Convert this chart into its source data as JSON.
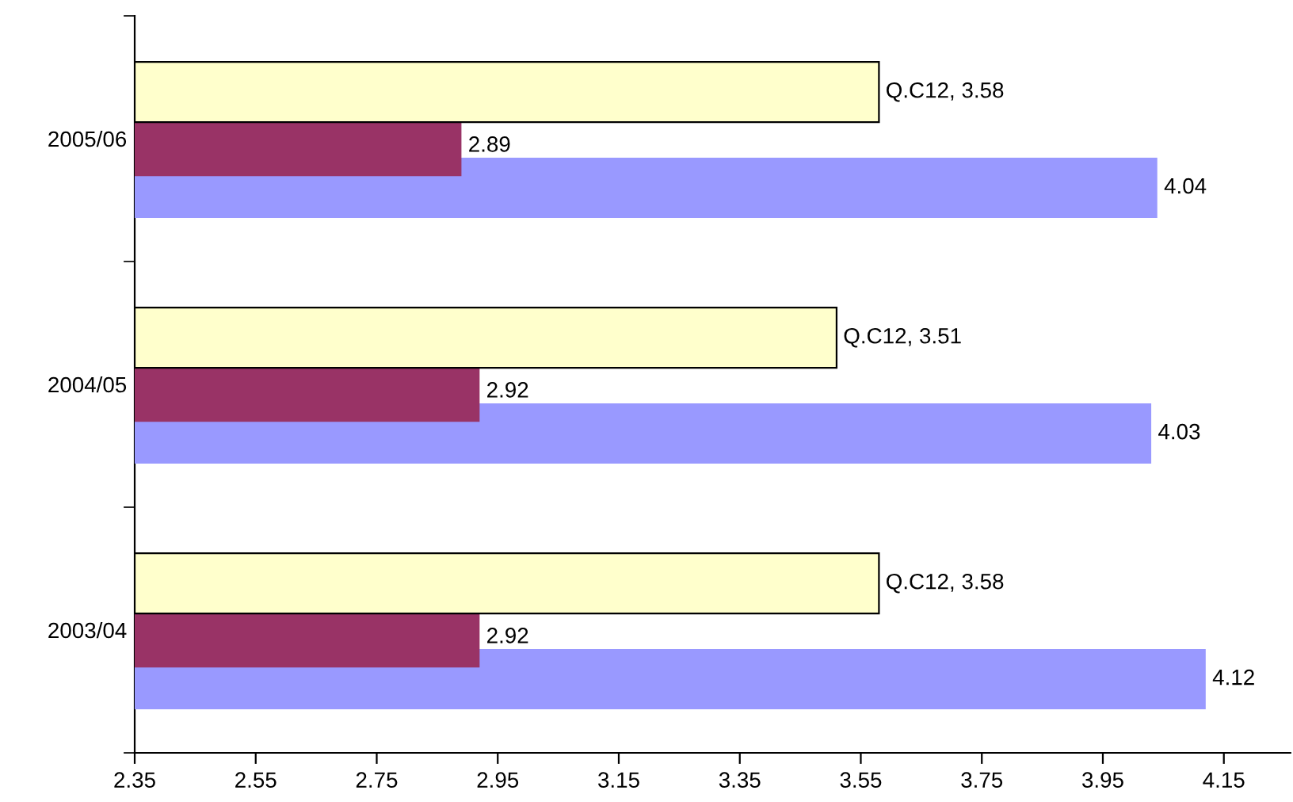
{
  "chart_data": {
    "type": "bar",
    "orientation": "horizontal",
    "categories": [
      "2005/06",
      "2004/05",
      "2003/04"
    ],
    "series": [
      {
        "color": "#ffffcc",
        "values": [
          3.58,
          3.51,
          3.58
        ],
        "value_labels": [
          "Q.C12, 3.58",
          "Q.C12, 3.51",
          "Q.C12, 3.58"
        ]
      },
      {
        "color": "#993366",
        "values": [
          2.89,
          2.92,
          2.92
        ],
        "value_labels": [
          "2.89",
          "2.92",
          "2.92"
        ]
      },
      {
        "color": "#9999ff",
        "values": [
          4.04,
          4.03,
          4.12
        ],
        "value_labels": [
          "4.04",
          "4.03",
          "4.12"
        ]
      }
    ],
    "xlim": [
      2.35,
      4.26
    ],
    "xticks": [
      2.35,
      2.55,
      2.75,
      2.95,
      3.15,
      3.35,
      3.55,
      3.75,
      3.95,
      4.15
    ],
    "grid": false,
    "legend": false
  }
}
